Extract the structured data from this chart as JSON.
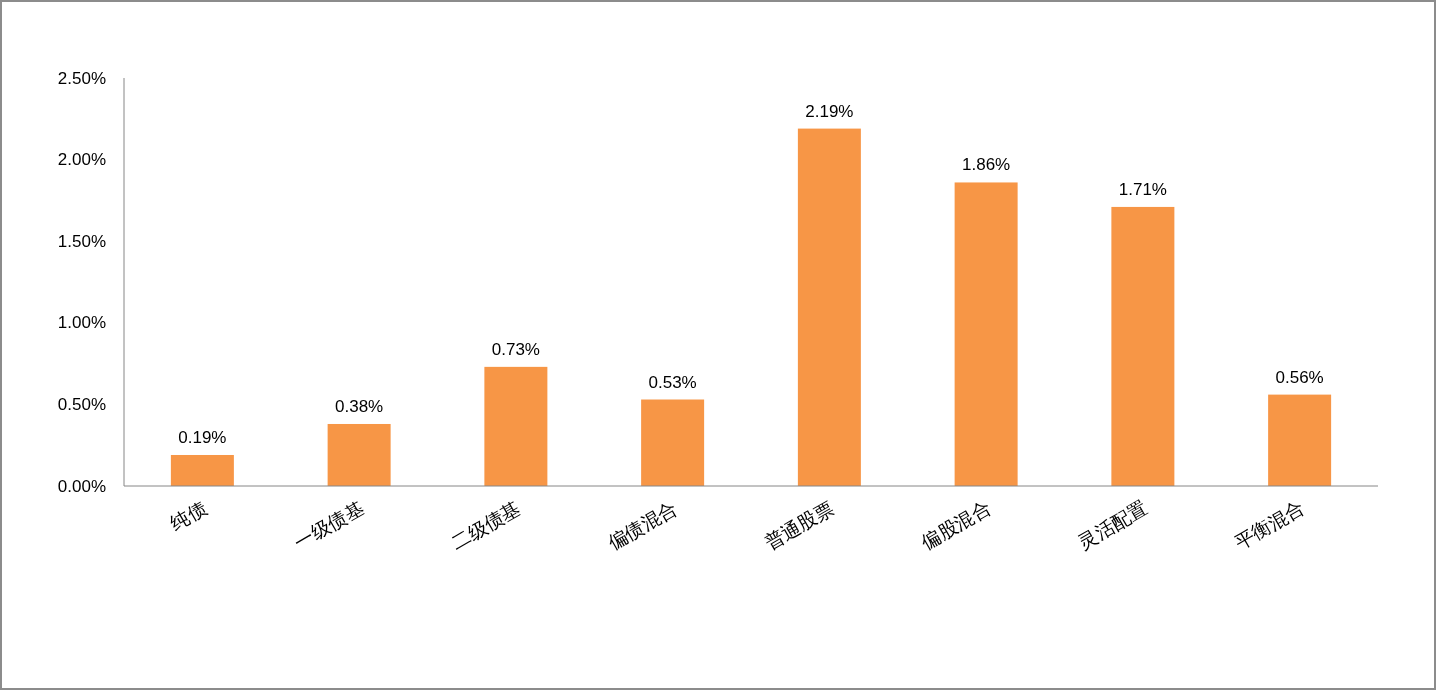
{
  "chart_data": {
    "type": "bar",
    "categories": [
      "纯债",
      "一级债基",
      "二级债基",
      "偏债混合",
      "普通股票",
      "偏股混合",
      "灵活配置",
      "平衡混合"
    ],
    "values": [
      0.19,
      0.38,
      0.73,
      0.53,
      2.19,
      1.86,
      1.71,
      0.56
    ],
    "value_labels": [
      "0.19%",
      "0.38%",
      "0.73%",
      "0.53%",
      "2.19%",
      "1.86%",
      "1.71%",
      "0.56%"
    ],
    "color": "#f79646",
    "ylim": [
      0,
      2.5
    ],
    "yticks": [
      {
        "value": 0,
        "label": "0.00%"
      },
      {
        "value": 0.5,
        "label": "0.50%"
      },
      {
        "value": 1,
        "label": "1.00%"
      },
      {
        "value": 1.5,
        "label": "1.50%"
      },
      {
        "value": 2,
        "label": "2.00%"
      },
      {
        "value": 2.5,
        "label": "2.50%"
      }
    ],
    "grid": false
  }
}
